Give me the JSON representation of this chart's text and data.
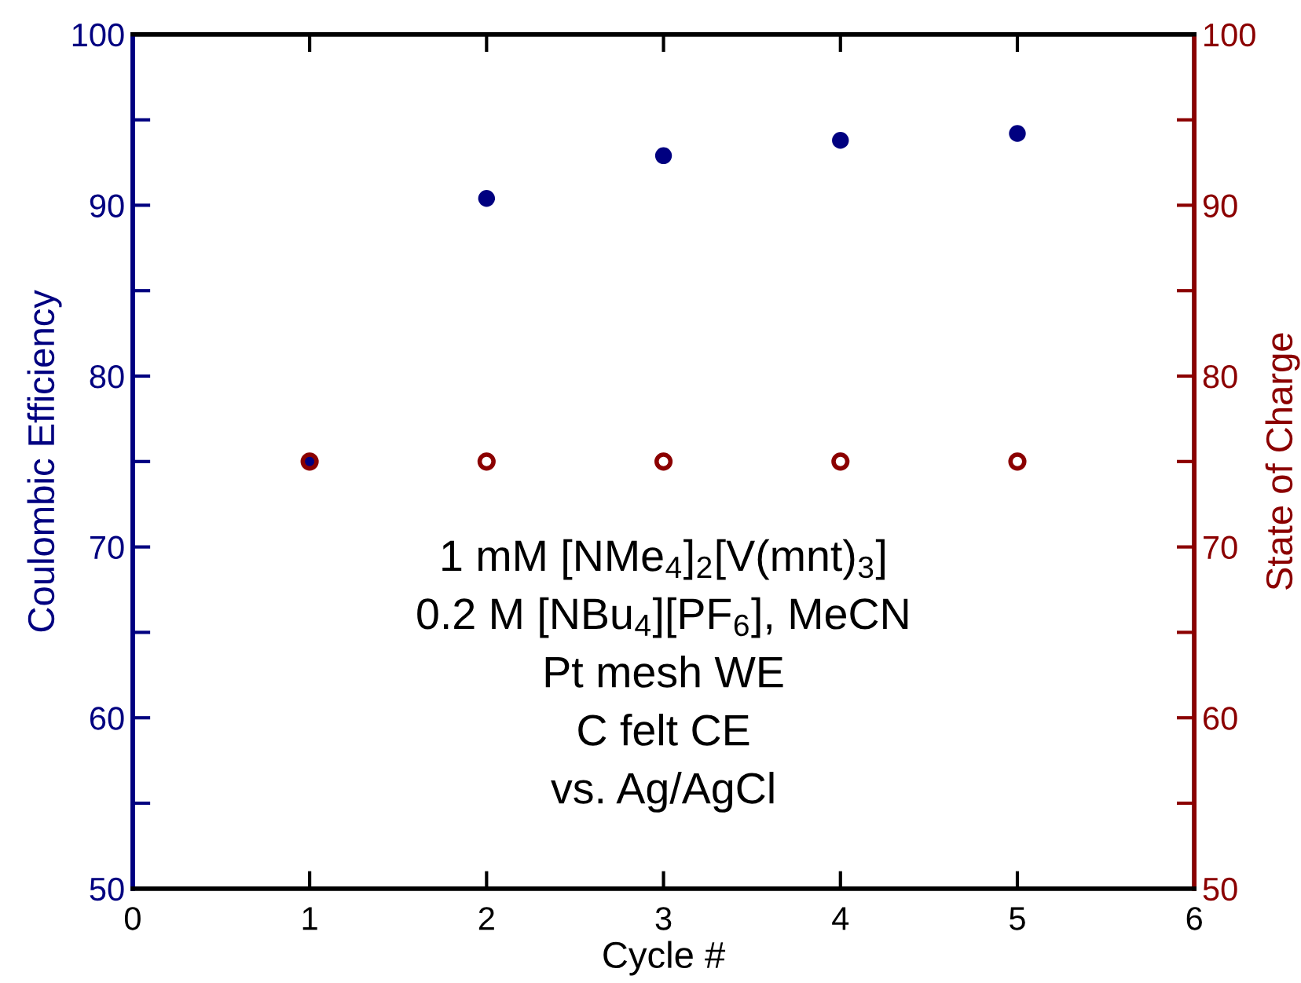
{
  "chart_data": {
    "type": "scatter",
    "xlabel": "Cycle #",
    "ylabel": "Coulombic Efficiency",
    "y2label": "State of Charge",
    "x": [
      1,
      2,
      3,
      4,
      5
    ],
    "series": [
      {
        "color": "#000080",
        "values": [
          75,
          90.4,
          92.9,
          93.8,
          94.2
        ],
        "marker": "circle"
      },
      {
        "color": "#8b0000",
        "values": [
          75,
          75,
          75,
          75,
          75
        ],
        "axis": "y2",
        "marker": "circle"
      }
    ],
    "xlim": [
      0,
      6
    ],
    "xticks": [
      0,
      1,
      2,
      3,
      4,
      5,
      6
    ],
    "ylim": [
      50,
      100
    ],
    "yticks": [
      50,
      {
        "value": 55,
        "label": null
      },
      60,
      {
        "value": 65,
        "label": null
      },
      70,
      {
        "value": 75,
        "label": null
      },
      80,
      {
        "value": 85,
        "label": null
      },
      90,
      {
        "value": 95,
        "label": null
      },
      100
    ],
    "y2lim": [
      50,
      100
    ],
    "y2ticks": [
      50,
      {
        "value": 55,
        "label": null
      },
      60,
      {
        "value": 65,
        "label": null
      },
      70,
      {
        "value": 75,
        "label": null
      },
      80,
      {
        "value": 85,
        "label": null
      },
      90,
      {
        "value": 95,
        "label": null
      },
      100
    ],
    "grid": false,
    "legend": false,
    "annotations": [
      "1 mM [NMe$_{4}$]$_{2}$[V(mnt)$_{3}$]",
      "0.2 M [NBu$_{4}$][PF$_{6}$], MeCN",
      "Pt mesh WE",
      "C felt CE",
      "vs. Ag/AgCl"
    ]
  }
}
